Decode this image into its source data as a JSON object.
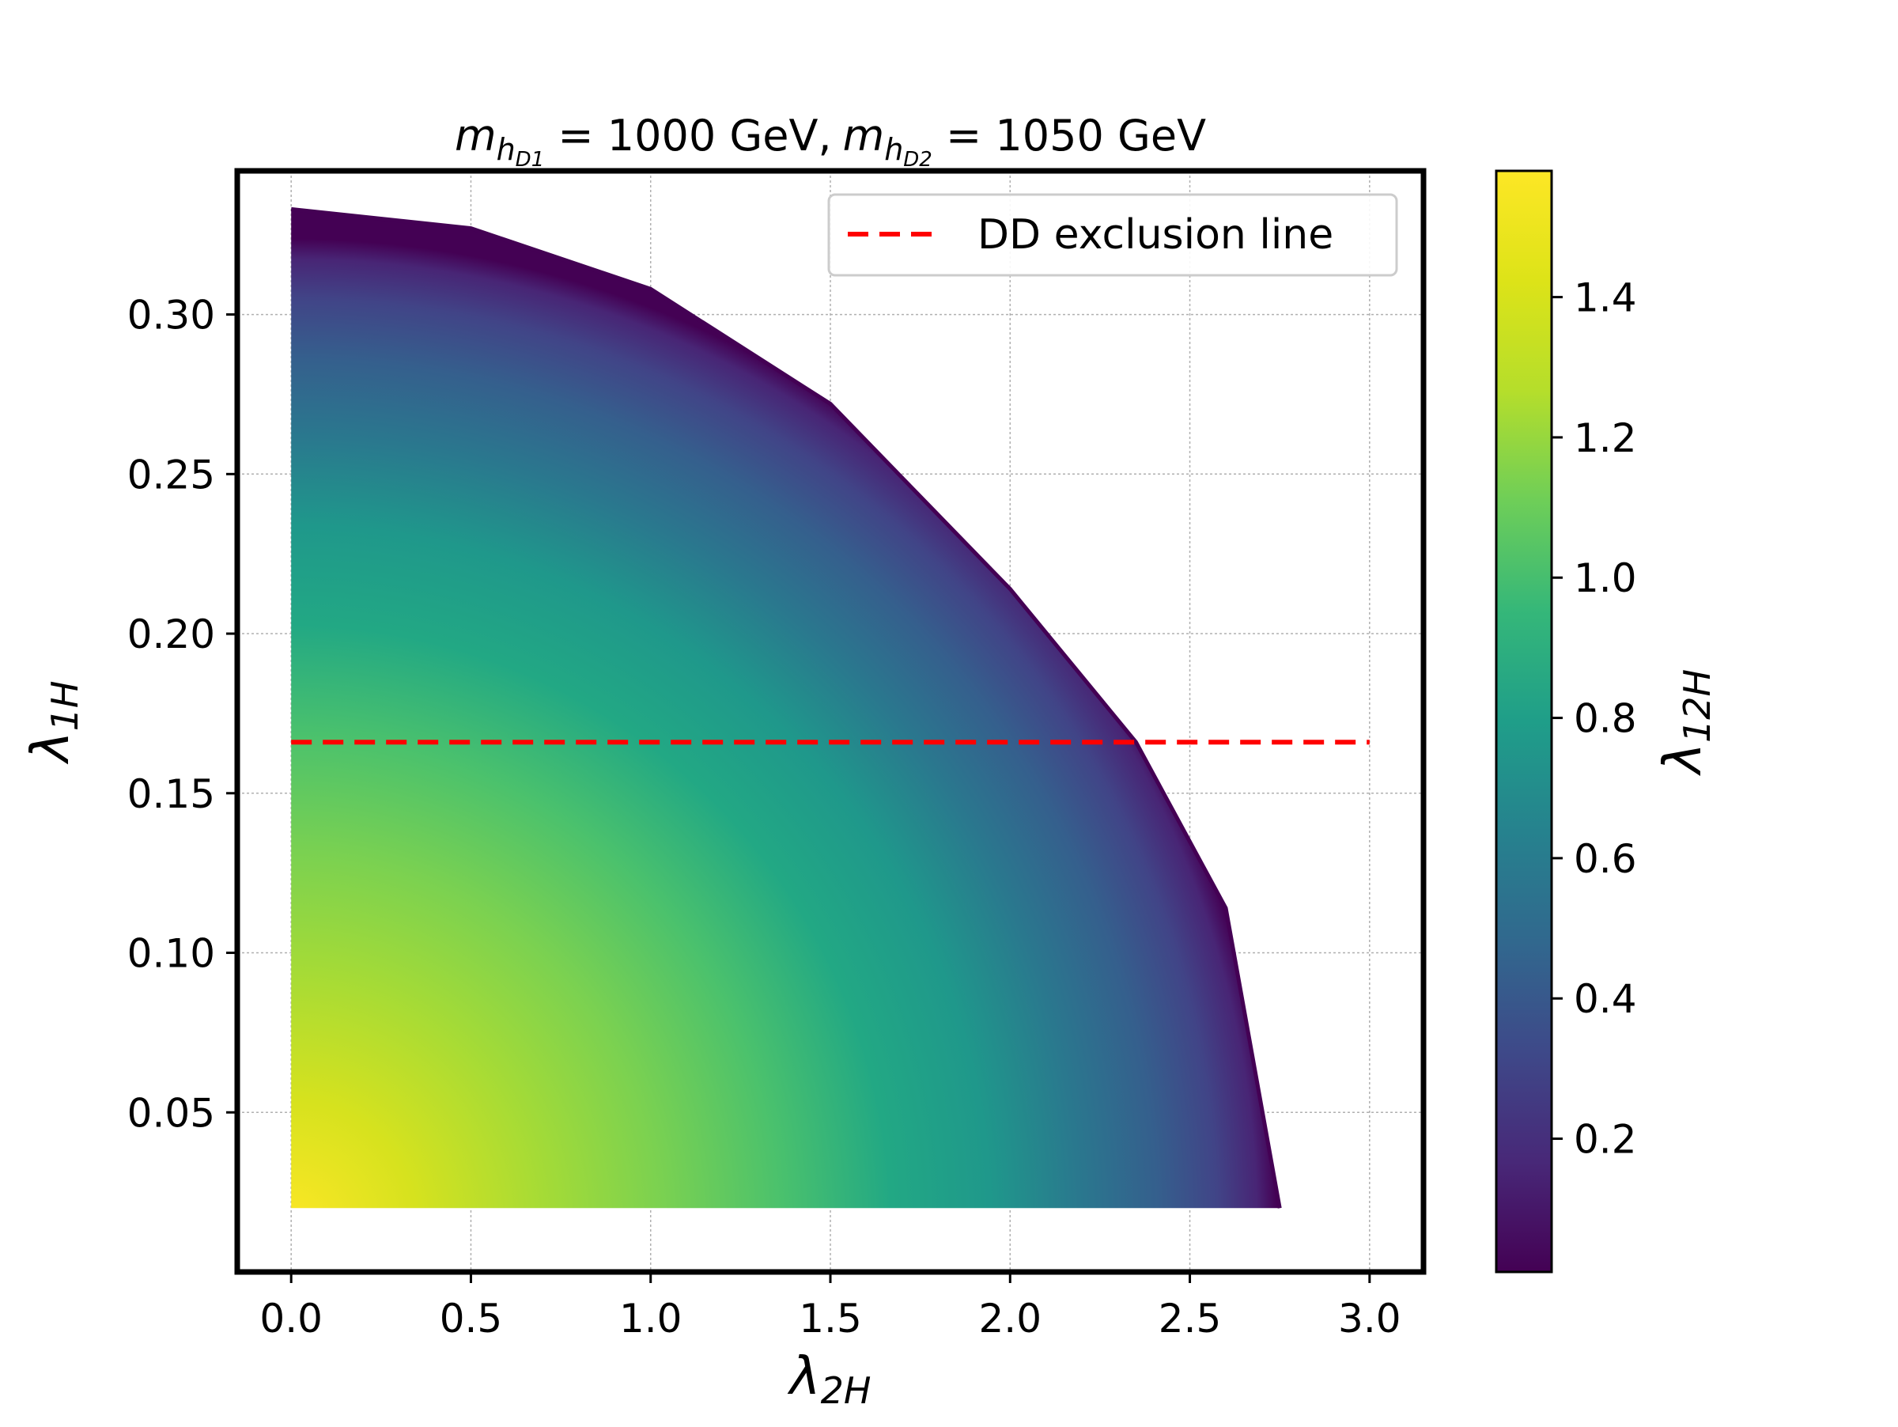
{
  "chart_data": {
    "type": "scatter",
    "title": {
      "m1_symbol": "m",
      "m1_sub": "h",
      "m1_subsub": "D1",
      "m1_value": " = 1000 GeV,",
      "m2_symbol": "m",
      "m2_sub": "h",
      "m2_subsub": "D2",
      "m2_value": " = 1050 GeV"
    },
    "xlabel": {
      "main": "λ",
      "sub": "2H"
    },
    "ylabel": {
      "main": "λ",
      "sub": "1H"
    },
    "colorbar_label": {
      "main": "λ",
      "sub": "12H"
    },
    "xlim": [
      -0.15,
      3.15
    ],
    "ylim": [
      0.0,
      0.345
    ],
    "x_ticks": [
      0.0,
      0.5,
      1.0,
      1.5,
      2.0,
      2.5,
      3.0
    ],
    "x_tick_labels": [
      "0.0",
      "0.5",
      "1.0",
      "1.5",
      "2.0",
      "2.5",
      "3.0"
    ],
    "y_ticks": [
      0.05,
      0.1,
      0.15,
      0.2,
      0.25,
      0.3
    ],
    "y_tick_labels": [
      "0.05",
      "0.10",
      "0.15",
      "0.20",
      "0.25",
      "0.30"
    ],
    "colorbar_range": [
      0.01,
      1.58
    ],
    "colorbar_ticks": [
      0.2,
      0.4,
      0.6,
      0.8,
      1.0,
      1.2,
      1.4
    ],
    "colorbar_tick_labels": [
      "0.2",
      "0.4",
      "0.6",
      "0.8",
      "1.0",
      "1.2",
      "1.4"
    ],
    "colormap": "viridis",
    "grid": true,
    "legend_position": "top-right",
    "region": {
      "x_min": 0.0,
      "y_min": 0.02,
      "y_max": 0.333,
      "x_at_y_min": 2.75,
      "boundary": [
        [
          0.0,
          0.333
        ],
        [
          0.5,
          0.327
        ],
        [
          1.0,
          0.308
        ],
        [
          1.5,
          0.272
        ],
        [
          2.0,
          0.214
        ],
        [
          2.35,
          0.166
        ],
        [
          2.6,
          0.114
        ],
        [
          2.75,
          0.02
        ]
      ],
      "color_value_at_origin": 1.58,
      "color_value_at_boundary": 0.01
    },
    "exclusion_line": {
      "label": "DD exclusion line",
      "y": 0.166,
      "x_range": [
        0.0,
        3.0
      ],
      "color": "#ff0000",
      "style": "dashed"
    }
  }
}
